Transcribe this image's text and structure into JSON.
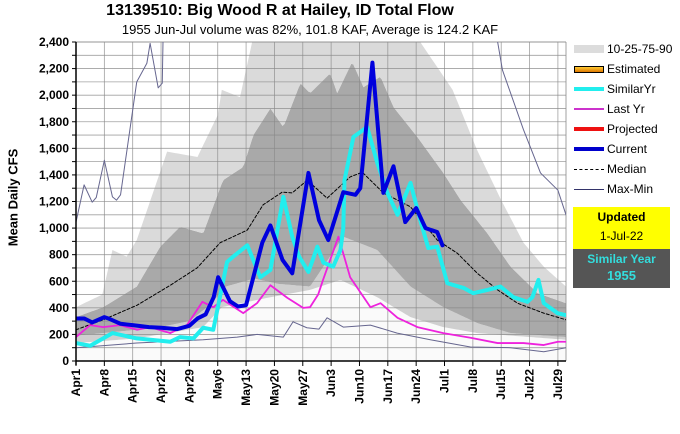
{
  "title": "13139510: Big Wood R at Hailey, ID Total Flow",
  "subtitle": "1955 Jun-Jul volume was 82%, 101.8 KAF, Average is 124.2 KAF",
  "legend": {
    "bands": "10-25-75-90",
    "estimated": "Estimated",
    "similar": "SimilarYr",
    "last_yr": "Last Yr",
    "projected": "Projected",
    "current": "Current",
    "median": "Median",
    "maxmin": "Max-Min"
  },
  "updated_box": {
    "label": "Updated",
    "date": "1-Jul-22"
  },
  "similar_box": {
    "label": "Similar Year",
    "year": "1955"
  },
  "colors": {
    "current": "#0000dd",
    "similar": "#22eeee",
    "last_yr": "#ee22dd",
    "projected": "#ee1111",
    "median": "#000000",
    "maxmin": "#66668f",
    "band_outer": "#dadada",
    "band_inner": "#a9a9a9",
    "band_low": "#cfcfcf"
  },
  "chart_data": {
    "type": "line",
    "title": "13139510: Big Wood R at Hailey, ID Total Flow",
    "xlabel": "",
    "ylabel": "Mean Daily CFS",
    "x_unit": "days since Apr 1",
    "xlim": [
      0,
      121
    ],
    "ylim": [
      0,
      2400
    ],
    "grid": true,
    "legend_position": "right",
    "x_ticks": [
      [
        0,
        "Apr1"
      ],
      [
        7,
        "Apr8"
      ],
      [
        14,
        "Apr15"
      ],
      [
        21,
        "Apr22"
      ],
      [
        28,
        "Apr29"
      ],
      [
        35,
        "May6"
      ],
      [
        42,
        "May13"
      ],
      [
        49,
        "May20"
      ],
      [
        56,
        "May27"
      ],
      [
        63,
        "Jun3"
      ],
      [
        70,
        "Jun10"
      ],
      [
        77,
        "Jun17"
      ],
      [
        84,
        "Jun24"
      ],
      [
        91,
        "Jul1"
      ],
      [
        98,
        "Jul8"
      ],
      [
        105,
        "Jul15"
      ],
      [
        112,
        "Jul22"
      ],
      [
        119,
        "Jul29"
      ]
    ],
    "y_ticks": [
      [
        0,
        "0"
      ],
      [
        200,
        "200"
      ],
      [
        400,
        "400"
      ],
      [
        600,
        "600"
      ],
      [
        800,
        "800"
      ],
      [
        1000,
        "1,000"
      ],
      [
        1200,
        "1,200"
      ],
      [
        1400,
        "1,400"
      ],
      [
        1600,
        "1,600"
      ],
      [
        1800,
        "1,800"
      ],
      [
        2000,
        "2,000"
      ],
      [
        2200,
        "2,200"
      ],
      [
        2400,
        "2,400"
      ]
    ],
    "series": {
      "p90": [
        [
          0,
          405
        ],
        [
          6.5,
          500
        ],
        [
          9,
          835
        ],
        [
          12.5,
          785
        ],
        [
          15,
          910
        ],
        [
          22.5,
          1575
        ],
        [
          30,
          1535
        ],
        [
          35,
          1850
        ],
        [
          36,
          2040
        ],
        [
          40.5,
          1985
        ],
        [
          43.5,
          2400
        ],
        [
          85,
          2400
        ],
        [
          93,
          2040
        ],
        [
          99,
          1590
        ],
        [
          105,
          1210
        ],
        [
          110.5,
          890
        ],
        [
          115.5,
          710
        ],
        [
          121,
          560
        ]
      ],
      "p75": [
        [
          0,
          330
        ],
        [
          6.7,
          405
        ],
        [
          15,
          560
        ],
        [
          20.8,
          860
        ],
        [
          25.7,
          1010
        ],
        [
          31.4,
          960
        ],
        [
          36.3,
          1360
        ],
        [
          41.3,
          1460
        ],
        [
          43.8,
          1700
        ],
        [
          48,
          1900
        ],
        [
          51.2,
          1760
        ],
        [
          55.4,
          2090
        ],
        [
          57.8,
          2015
        ],
        [
          62.8,
          2165
        ],
        [
          64.5,
          2015
        ],
        [
          68.2,
          2250
        ],
        [
          71,
          2060
        ],
        [
          75.2,
          2140
        ],
        [
          78.4,
          1910
        ],
        [
          84.3,
          1685
        ],
        [
          90.7,
          1415
        ],
        [
          95,
          1210
        ],
        [
          101.6,
          960
        ],
        [
          107.3,
          710
        ],
        [
          114,
          510
        ],
        [
          121,
          435
        ]
      ],
      "p25": [
        [
          0,
          190
        ],
        [
          10,
          220
        ],
        [
          20,
          250
        ],
        [
          28,
          300
        ],
        [
          33,
          420
        ],
        [
          37,
          560
        ],
        [
          44,
          620
        ],
        [
          50,
          580
        ],
        [
          57.8,
          560
        ],
        [
          66,
          935
        ],
        [
          74.4,
          835
        ],
        [
          82.6,
          560
        ],
        [
          90.7,
          405
        ],
        [
          99.1,
          285
        ],
        [
          107.3,
          210
        ],
        [
          121,
          180
        ]
      ],
      "p10": [
        [
          0,
          135
        ],
        [
          15,
          170
        ],
        [
          31.4,
          255
        ],
        [
          36,
          405
        ],
        [
          48,
          480
        ],
        [
          57.8,
          535
        ],
        [
          65.3,
          610
        ],
        [
          74.4,
          480
        ],
        [
          82.6,
          330
        ],
        [
          90.7,
          255
        ],
        [
          99.1,
          210
        ],
        [
          121,
          160
        ]
      ],
      "min": [
        [
          0,
          100
        ],
        [
          15,
          135
        ],
        [
          31.4,
          160
        ],
        [
          39.8,
          180
        ],
        [
          44.7,
          200
        ],
        [
          51.2,
          180
        ],
        [
          53.6,
          295
        ],
        [
          57,
          250
        ],
        [
          60,
          240
        ],
        [
          62,
          325
        ],
        [
          66,
          255
        ],
        [
          72.7,
          270
        ],
        [
          79.3,
          210
        ],
        [
          87.5,
          160
        ],
        [
          97.4,
          105
        ],
        [
          107.3,
          100
        ],
        [
          115.5,
          70
        ],
        [
          121,
          100
        ]
      ],
      "max": [
        [
          0,
          1045
        ],
        [
          2,
          1325
        ],
        [
          4,
          1195
        ],
        [
          5,
          1230
        ],
        [
          7,
          1510
        ],
        [
          9,
          1235
        ],
        [
          10,
          1210
        ],
        [
          11,
          1250
        ],
        [
          15,
          2100
        ],
        [
          17.5,
          2240
        ],
        [
          18.3,
          2390
        ],
        [
          20.3,
          2055
        ],
        [
          21.3,
          2090
        ],
        [
          21.6,
          2600
        ],
        [
          103,
          2600
        ],
        [
          105.3,
          2190
        ],
        [
          110.5,
          1740
        ],
        [
          114.7,
          1415
        ],
        [
          119,
          1285
        ],
        [
          121,
          1100
        ]
      ],
      "median": [
        [
          0,
          235
        ],
        [
          6.7,
          310
        ],
        [
          15.1,
          420
        ],
        [
          23.3,
          570
        ],
        [
          29.9,
          700
        ],
        [
          35.6,
          890
        ],
        [
          42.3,
          985
        ],
        [
          46.2,
          1175
        ],
        [
          50.9,
          1270
        ],
        [
          53.4,
          1265
        ],
        [
          57.1,
          1360
        ],
        [
          62,
          1225
        ],
        [
          67.7,
          1385
        ],
        [
          70.7,
          1420
        ],
        [
          75.9,
          1265
        ],
        [
          82.6,
          1160
        ],
        [
          89.2,
          910
        ],
        [
          94.2,
          810
        ],
        [
          99.1,
          660
        ],
        [
          104.1,
          535
        ],
        [
          109,
          435
        ],
        [
          115.5,
          360
        ],
        [
          121,
          310
        ]
      ],
      "last_yr": [
        [
          0,
          180
        ],
        [
          3.5,
          270
        ],
        [
          6.7,
          255
        ],
        [
          10.9,
          270
        ],
        [
          15.1,
          235
        ],
        [
          18.3,
          255
        ],
        [
          23.3,
          210
        ],
        [
          27.4,
          270
        ],
        [
          31.2,
          445
        ],
        [
          33.9,
          405
        ],
        [
          36.3,
          460
        ],
        [
          41.3,
          360
        ],
        [
          44.7,
          435
        ],
        [
          48,
          570
        ],
        [
          52.2,
          475
        ],
        [
          56.1,
          400
        ],
        [
          57.8,
          405
        ],
        [
          59.8,
          500
        ],
        [
          61,
          610
        ],
        [
          64.8,
          935
        ],
        [
          67.7,
          630
        ],
        [
          72.7,
          405
        ],
        [
          75.2,
          435
        ],
        [
          79.4,
          325
        ],
        [
          84.3,
          255
        ],
        [
          90.7,
          210
        ],
        [
          97.4,
          175
        ],
        [
          104.1,
          135
        ],
        [
          110.5,
          135
        ],
        [
          115.5,
          120
        ],
        [
          119,
          145
        ],
        [
          121,
          145
        ]
      ],
      "similar": [
        [
          0,
          135
        ],
        [
          3.5,
          115
        ],
        [
          9,
          210
        ],
        [
          15,
          170
        ],
        [
          23.3,
          145
        ],
        [
          25.7,
          180
        ],
        [
          29,
          170
        ],
        [
          31.4,
          250
        ],
        [
          33.9,
          235
        ],
        [
          37.3,
          745
        ],
        [
          38.8,
          785
        ],
        [
          42.3,
          870
        ],
        [
          45.5,
          630
        ],
        [
          48,
          685
        ],
        [
          51.2,
          1235
        ],
        [
          53.4,
          935
        ],
        [
          55.1,
          785
        ],
        [
          57.4,
          670
        ],
        [
          59.6,
          860
        ],
        [
          61.1,
          740
        ],
        [
          63.5,
          710
        ],
        [
          65.3,
          835
        ],
        [
          66,
          1000
        ],
        [
          66.3,
          1360
        ],
        [
          68.5,
          1685
        ],
        [
          71.9,
          1760
        ],
        [
          74.4,
          1490
        ],
        [
          76.9,
          1265
        ],
        [
          79.4,
          1100
        ],
        [
          82.6,
          1340
        ],
        [
          85,
          1060
        ],
        [
          87,
          850
        ],
        [
          89.2,
          860
        ],
        [
          91.7,
          585
        ],
        [
          95.7,
          550
        ],
        [
          98.1,
          510
        ],
        [
          101.6,
          535
        ],
        [
          104.8,
          560
        ],
        [
          108,
          480
        ],
        [
          111.5,
          445
        ],
        [
          112.7,
          480
        ],
        [
          114.2,
          610
        ],
        [
          115.5,
          435
        ],
        [
          118.9,
          360
        ],
        [
          121,
          345
        ]
      ],
      "current": [
        [
          0,
          320
        ],
        [
          2,
          320
        ],
        [
          4,
          290
        ],
        [
          7,
          330
        ],
        [
          8,
          320
        ],
        [
          11,
          280
        ],
        [
          14,
          270
        ],
        [
          18,
          255
        ],
        [
          21,
          250
        ],
        [
          25,
          240
        ],
        [
          28,
          265
        ],
        [
          30,
          320
        ],
        [
          32,
          350
        ],
        [
          34,
          480
        ],
        [
          35.1,
          630
        ],
        [
          38,
          450
        ],
        [
          40,
          410
        ],
        [
          42,
          420
        ],
        [
          46,
          890
        ],
        [
          48,
          1020
        ],
        [
          51,
          760
        ],
        [
          53.4,
          660
        ],
        [
          57.4,
          1415
        ],
        [
          60,
          1060
        ],
        [
          62.3,
          910
        ],
        [
          66,
          1270
        ],
        [
          69,
          1250
        ],
        [
          70.2,
          1300
        ],
        [
          73.2,
          2245
        ],
        [
          75.9,
          1265
        ],
        [
          78.4,
          1465
        ],
        [
          81.3,
          1045
        ],
        [
          84,
          1150
        ],
        [
          86.3,
          1000
        ],
        [
          89.2,
          970
        ],
        [
          90.5,
          870
        ]
      ]
    }
  }
}
